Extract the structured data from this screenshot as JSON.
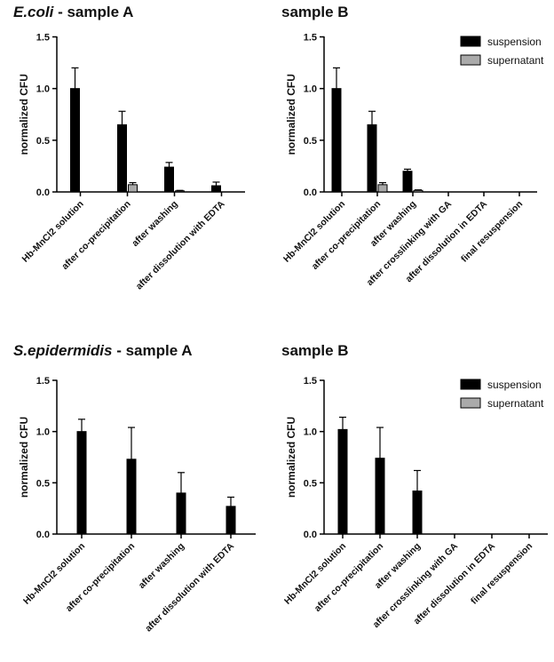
{
  "colors": {
    "suspension": "#000000",
    "supernatant": "#aaaaaa",
    "axis": "#000000"
  },
  "legend": {
    "suspension": "suspension",
    "supernatant": "supernatant"
  },
  "chart_data": [
    {
      "type": "bar",
      "title_italic": "E.coli",
      "title_rest": " - sample A",
      "ylabel": "normalized CFU",
      "ylim": [
        0,
        1.5
      ],
      "yticks": [
        "0.0",
        "0.5",
        "1.0",
        "1.5"
      ],
      "categories": [
        "Hb-MnCl2 solution",
        "after co-precipitation",
        "after washing",
        "after dissolution with EDTA"
      ],
      "series": [
        {
          "name": "suspension",
          "values": [
            1.0,
            0.65,
            0.24,
            0.06
          ],
          "errors": [
            0.2,
            0.13,
            0.045,
            0.035
          ]
        },
        {
          "name": "supernatant",
          "values": [
            null,
            0.07,
            0.01,
            null
          ],
          "errors": [
            null,
            0.02,
            0.005,
            null
          ]
        }
      ],
      "legend": false
    },
    {
      "type": "bar",
      "title_italic": "",
      "title_rest": "sample B",
      "ylabel": "normalized CFU",
      "ylim": [
        0,
        1.5
      ],
      "yticks": [
        "0.0",
        "0.5",
        "1.0",
        "1.5"
      ],
      "categories": [
        "Hb-MnCl2 solution",
        "after co-precipitation",
        "after washing",
        "after crosslinking with GA",
        "after dissolution in EDTA",
        "final resuspension"
      ],
      "series": [
        {
          "name": "suspension",
          "values": [
            1.0,
            0.65,
            0.2,
            0,
            0,
            0
          ],
          "errors": [
            0.2,
            0.13,
            0.02,
            0,
            0,
            0
          ]
        },
        {
          "name": "supernatant",
          "values": [
            null,
            0.07,
            0.015,
            null,
            null,
            null
          ],
          "errors": [
            null,
            0.02,
            0.005,
            null,
            null,
            null
          ]
        }
      ],
      "legend": true
    },
    {
      "type": "bar",
      "title_italic": "S.epidermidis",
      "title_rest": " - sample A",
      "ylabel": "normalized CFU",
      "ylim": [
        0,
        1.5
      ],
      "yticks": [
        "0.0",
        "0.5",
        "1.0",
        "1.5"
      ],
      "categories": [
        "Hb-MnCl2 solution",
        "after co-precipitation",
        "after washing",
        "after dissolution with EDTA"
      ],
      "series": [
        {
          "name": "suspension",
          "values": [
            1.0,
            0.73,
            0.4,
            0.27
          ],
          "errors": [
            0.12,
            0.31,
            0.2,
            0.09
          ]
        }
      ],
      "legend": false
    },
    {
      "type": "bar",
      "title_italic": "",
      "title_rest": "sample B",
      "ylabel": "normalized CFU",
      "ylim": [
        0,
        1.5
      ],
      "yticks": [
        "0.0",
        "0.5",
        "1.0",
        "1.5"
      ],
      "categories": [
        "Hb-MnCl2 solution",
        "after co-precipitation",
        "after washing",
        "after crosslinking with GA",
        "after dissolution in EDTA",
        "final resuspension"
      ],
      "series": [
        {
          "name": "suspension",
          "values": [
            1.02,
            0.74,
            0.42,
            0,
            0,
            0
          ],
          "errors": [
            0.12,
            0.3,
            0.2,
            0,
            0,
            0
          ]
        }
      ],
      "legend": true
    }
  ]
}
